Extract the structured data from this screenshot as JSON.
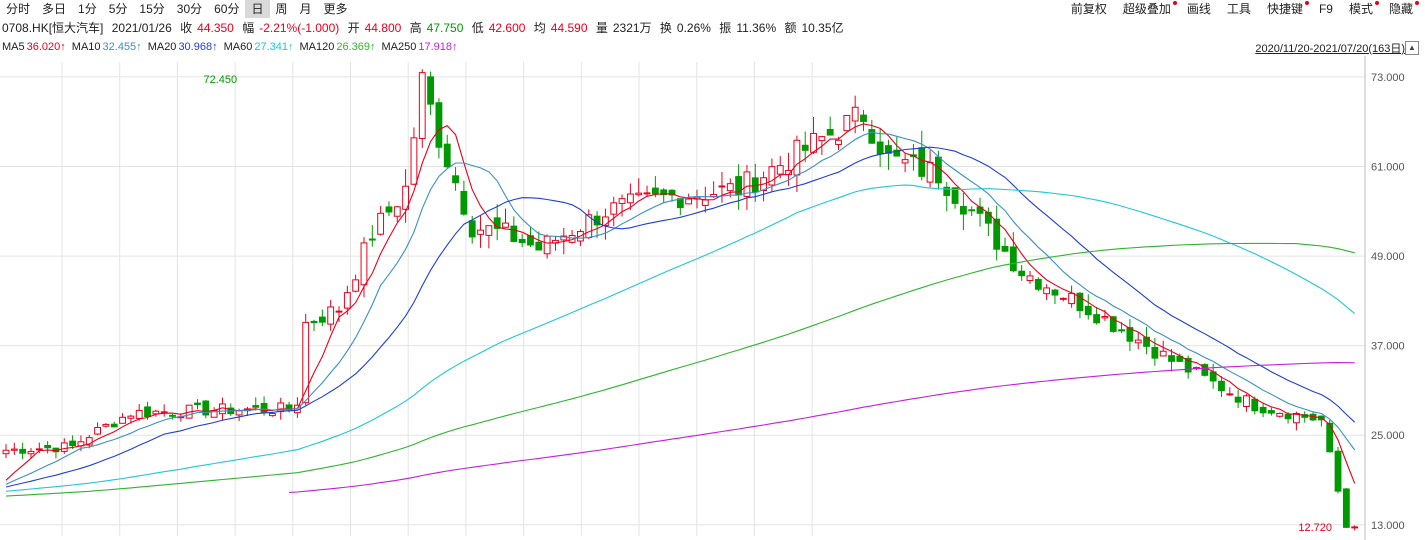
{
  "toolbar": {
    "tabs": [
      "分时",
      "多日",
      "1分",
      "5分",
      "15分",
      "30分",
      "60分",
      "日",
      "周",
      "月",
      "更多"
    ],
    "active_tab": 7,
    "tools": [
      {
        "label": "前复权",
        "dot": false
      },
      {
        "label": "超级叠加",
        "dot": true
      },
      {
        "label": "画线",
        "dot": false
      },
      {
        "label": "工具",
        "dot": false
      },
      {
        "label": "快捷键",
        "dot": true
      },
      {
        "label": "F9",
        "dot": false
      },
      {
        "label": "模式",
        "dot": true
      },
      {
        "label": "隐藏",
        "dot": true
      }
    ]
  },
  "info": {
    "code": "0708.HK[恒大汽车]",
    "date": "2021/01/26",
    "close_label": "收",
    "close": "44.350",
    "change_label": "幅",
    "change": "-2.21%(-1.000)",
    "open_label": "开",
    "open": "44.800",
    "high_label": "高",
    "high": "47.750",
    "low_label": "低",
    "low": "42.600",
    "avg_label": "均",
    "avg": "44.590",
    "vol_label": "量",
    "vol": "2321万",
    "turnover_label": "换",
    "turnover": "0.26%",
    "amp_label": "振",
    "amp": "11.36%",
    "amount_label": "额",
    "amount": "10.35亿"
  },
  "ma": [
    {
      "label": "MA5",
      "value": "36.020↑",
      "color": "#e8001c"
    },
    {
      "label": "MA10",
      "value": "32.455↑",
      "color": "#3b8fc4"
    },
    {
      "label": "MA20",
      "value": "30.968↑",
      "color": "#1f3fd6"
    },
    {
      "label": "MA60",
      "value": "27.341↑",
      "color": "#1fc7d6"
    },
    {
      "label": "MA120",
      "value": "26.369↑",
      "color": "#2fb52f"
    },
    {
      "label": "MA250",
      "value": "17.918↑",
      "color": "#c51fe0"
    }
  ],
  "range_label": "2020/11/20-2021/07/20(163日)",
  "range_btn": "▲",
  "colors": {
    "up": "#e8001c",
    "down": "#009900",
    "grid": "#e4e4e4"
  },
  "chart_data": {
    "type": "candlestick",
    "x": [
      "2020/11/20",
      "2021/07/20"
    ],
    "ylim": [
      11.5,
      75
    ],
    "yticks": [
      "73.000",
      "61.000",
      "49.000",
      "37.000",
      "25.000",
      "13.000"
    ],
    "yticks_values": [
      73,
      61,
      49,
      37,
      25,
      13
    ],
    "annotations": [
      {
        "text": "72.450",
        "x_index": 23,
        "value": 72.45,
        "color": "#009900"
      },
      {
        "text": "12.720",
        "x_index": 161,
        "value": 12.72,
        "color": "#e8001c"
      }
    ],
    "anchors": [
      [
        0,
        23
      ],
      [
        8,
        23.5
      ],
      [
        10,
        25
      ],
      [
        15,
        28
      ],
      [
        25,
        28.4
      ],
      [
        34,
        28.5
      ],
      [
        35,
        29.5
      ],
      [
        36,
        40
      ],
      [
        40,
        42
      ],
      [
        44,
        52
      ],
      [
        48,
        58
      ],
      [
        50,
        72.45
      ],
      [
        52,
        65
      ],
      [
        56,
        53
      ],
      [
        60,
        52
      ],
      [
        64,
        50
      ],
      [
        72,
        55
      ],
      [
        80,
        57
      ],
      [
        88,
        58
      ],
      [
        94,
        62
      ],
      [
        100,
        66
      ],
      [
        103,
        68
      ],
      [
        106,
        62
      ],
      [
        112,
        60
      ],
      [
        116,
        55
      ],
      [
        122,
        47
      ],
      [
        130,
        42
      ],
      [
        140,
        35
      ],
      [
        150,
        29
      ],
      [
        158,
        27
      ],
      [
        161,
        12.72
      ]
    ],
    "series_ma_wait": {
      "MA60": 15,
      "MA120": 25,
      "MA250": 34
    },
    "ma_series": [
      {
        "name": "MA5",
        "color": "#e8001c",
        "window": 5
      },
      {
        "name": "MA10",
        "color": "#3b8fc4",
        "window": 10
      },
      {
        "name": "MA20",
        "color": "#1f3fd6",
        "window": 20
      },
      {
        "name": "MA60",
        "color": "#1fc7d6",
        "window": 60
      },
      {
        "name": "MA120",
        "color": "#2fb52f",
        "window": 120
      },
      {
        "name": "MA250",
        "color": "#c51fe0",
        "window": 250
      }
    ]
  }
}
